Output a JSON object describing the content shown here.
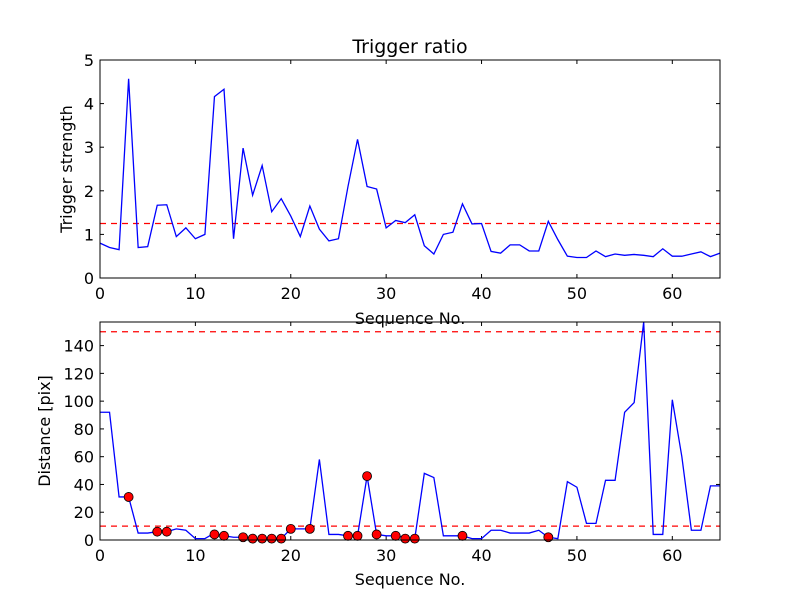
{
  "chart_data": [
    {
      "type": "line",
      "title": "Trigger ratio",
      "xlabel": "Sequence No.",
      "ylabel": "Trigger strength",
      "xlim": [
        0,
        65
      ],
      "ylim": [
        0,
        5
      ],
      "xticks": [
        "0",
        "10",
        "20",
        "30",
        "40",
        "50",
        "60"
      ],
      "yticks": [
        "0",
        "1",
        "2",
        "3",
        "4",
        "5"
      ],
      "grid": false,
      "series": [
        {
          "color": "#0000ff",
          "x": [
            0,
            1,
            2,
            3,
            4,
            5,
            6,
            7,
            8,
            9,
            10,
            11,
            12,
            13,
            14,
            15,
            16,
            17,
            18,
            19,
            20,
            21,
            22,
            23,
            24,
            25,
            26,
            27,
            28,
            29,
            30,
            31,
            32,
            33,
            34,
            35,
            36,
            37,
            38,
            39,
            40,
            41,
            42,
            43,
            44,
            45,
            46,
            47,
            48,
            49,
            50,
            51,
            52,
            53,
            54,
            55,
            56,
            57,
            58,
            59,
            60,
            61,
            62,
            63,
            64,
            65
          ],
          "values": [
            0.8,
            0.7,
            0.65,
            4.57,
            0.7,
            0.72,
            1.67,
            1.68,
            0.95,
            1.15,
            0.9,
            1.0,
            4.16,
            4.33,
            0.9,
            2.98,
            1.9,
            2.58,
            1.52,
            1.82,
            1.42,
            0.95,
            1.65,
            1.12,
            0.85,
            0.9,
            2.1,
            3.18,
            2.1,
            2.04,
            1.15,
            1.32,
            1.27,
            1.45,
            0.74,
            0.55,
            1.0,
            1.05,
            1.7,
            1.24,
            1.25,
            0.61,
            0.57,
            0.76,
            0.76,
            0.62,
            0.62,
            1.3,
            0.88,
            0.5,
            0.47,
            0.47,
            0.62,
            0.49,
            0.55,
            0.52,
            0.54,
            0.52,
            0.49,
            0.67,
            0.5,
            0.5,
            0.55,
            0.6,
            0.49,
            0.57
          ]
        }
      ],
      "threshold": {
        "value": 1.25,
        "color": "#ff0000",
        "style": "dashed"
      }
    },
    {
      "type": "line",
      "title": "",
      "xlabel": "Sequence No.",
      "ylabel": "Distance [pix]",
      "xlim": [
        0,
        65
      ],
      "ylim": [
        0,
        157
      ],
      "xticks": [
        "0",
        "10",
        "20",
        "30",
        "40",
        "50",
        "60"
      ],
      "yticks": [
        "0",
        "20",
        "40",
        "60",
        "80",
        "100",
        "120",
        "140"
      ],
      "grid": false,
      "series": [
        {
          "color": "#0000ff",
          "x": [
            0,
            1,
            2,
            3,
            4,
            5,
            6,
            7,
            8,
            9,
            10,
            11,
            12,
            13,
            14,
            15,
            16,
            17,
            18,
            19,
            20,
            21,
            22,
            23,
            24,
            25,
            26,
            27,
            28,
            29,
            30,
            31,
            32,
            33,
            34,
            35,
            36,
            37,
            38,
            39,
            40,
            41,
            42,
            43,
            44,
            45,
            46,
            47,
            48,
            49,
            50,
            51,
            52,
            53,
            54,
            55,
            56,
            57,
            58,
            59,
            60,
            61,
            62,
            63,
            64,
            65
          ],
          "values": [
            92,
            92,
            31,
            31,
            5,
            5,
            6,
            6,
            8,
            7,
            1,
            1,
            5,
            3,
            2,
            2,
            1,
            1,
            2,
            1,
            8,
            8,
            8,
            58,
            4,
            4,
            3,
            3,
            46,
            4,
            3,
            3,
            2,
            1,
            48,
            45,
            3,
            3,
            3,
            1,
            1,
            7,
            7,
            5,
            5,
            5,
            7,
            2,
            1,
            42,
            38,
            12,
            12,
            43,
            43,
            92,
            99,
            157,
            4,
            4,
            101,
            60,
            7,
            7,
            39,
            39
          ]
        },
        {
          "type": "scatter",
          "marker": "circle",
          "color": "#ff0000",
          "x": [
            3,
            6,
            7,
            12,
            13,
            15,
            16,
            17,
            18,
            19,
            20,
            22,
            26,
            27,
            28,
            29,
            31,
            32,
            33,
            38,
            47
          ],
          "values": [
            31,
            6,
            6,
            4,
            3,
            2,
            1,
            1,
            1,
            1,
            8,
            8,
            3,
            3,
            46,
            4,
            3,
            1,
            1,
            3,
            2
          ]
        }
      ],
      "thresholds": [
        {
          "value": 150,
          "color": "#ff0000",
          "style": "dashed"
        },
        {
          "value": 10,
          "color": "#ff0000",
          "style": "dashed"
        }
      ]
    }
  ]
}
